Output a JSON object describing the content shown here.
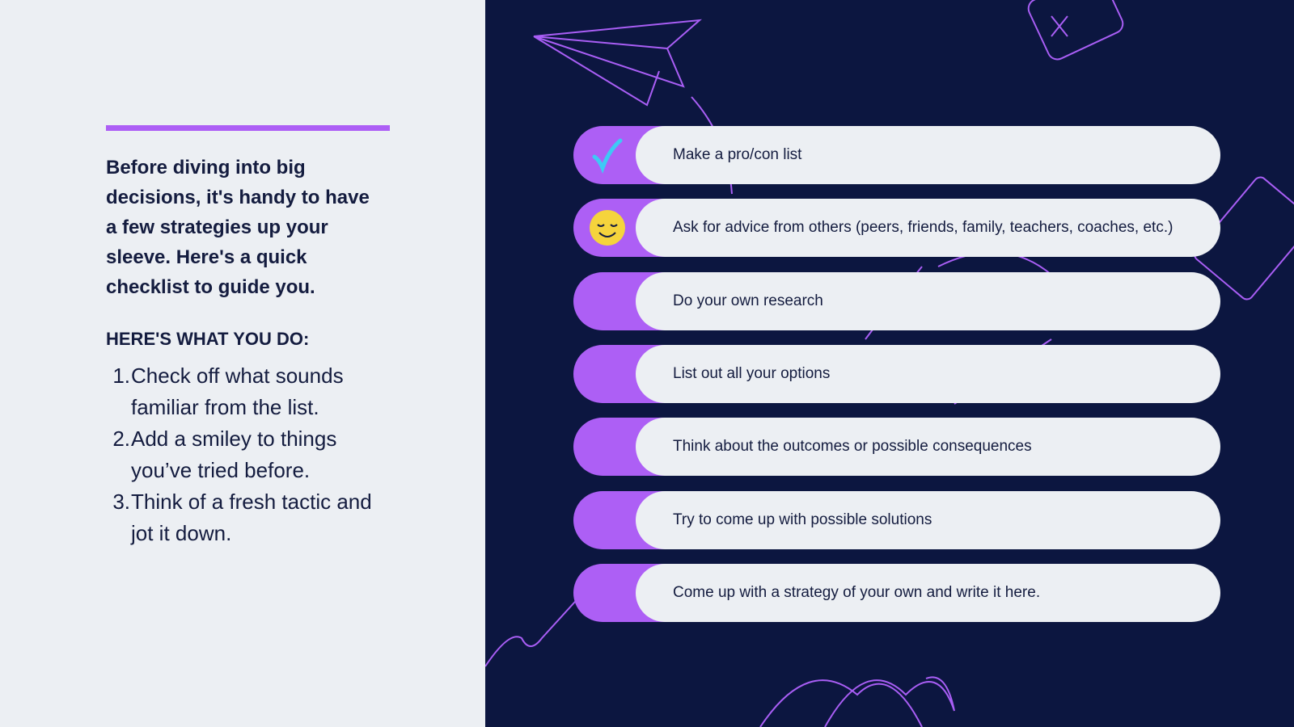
{
  "intro": {
    "text": "Before diving into big decisions, it's handy to have a few strategies up your sleeve. Here's a quick checklist to guide you.",
    "heading": "HERE'S WHAT YOU DO:",
    "steps": [
      {
        "number": "1.",
        "text": "Check off what sounds familiar from the list."
      },
      {
        "number": "2.",
        "text": "Add a smiley to things you’ve tried before."
      },
      {
        "number": "3.",
        "text": "Think of a fresh tactic and jot it down."
      }
    ]
  },
  "checklist": [
    "Make a pro/con list",
    "Ask for advice from others (peers, friends, family, teachers, coaches, etc.)",
    "Do your own research",
    "List out all your options",
    "Think about the outcomes or possible consequences",
    "Try to come up with possible solutions",
    "Come up with a strategy of your own and write it here."
  ]
}
